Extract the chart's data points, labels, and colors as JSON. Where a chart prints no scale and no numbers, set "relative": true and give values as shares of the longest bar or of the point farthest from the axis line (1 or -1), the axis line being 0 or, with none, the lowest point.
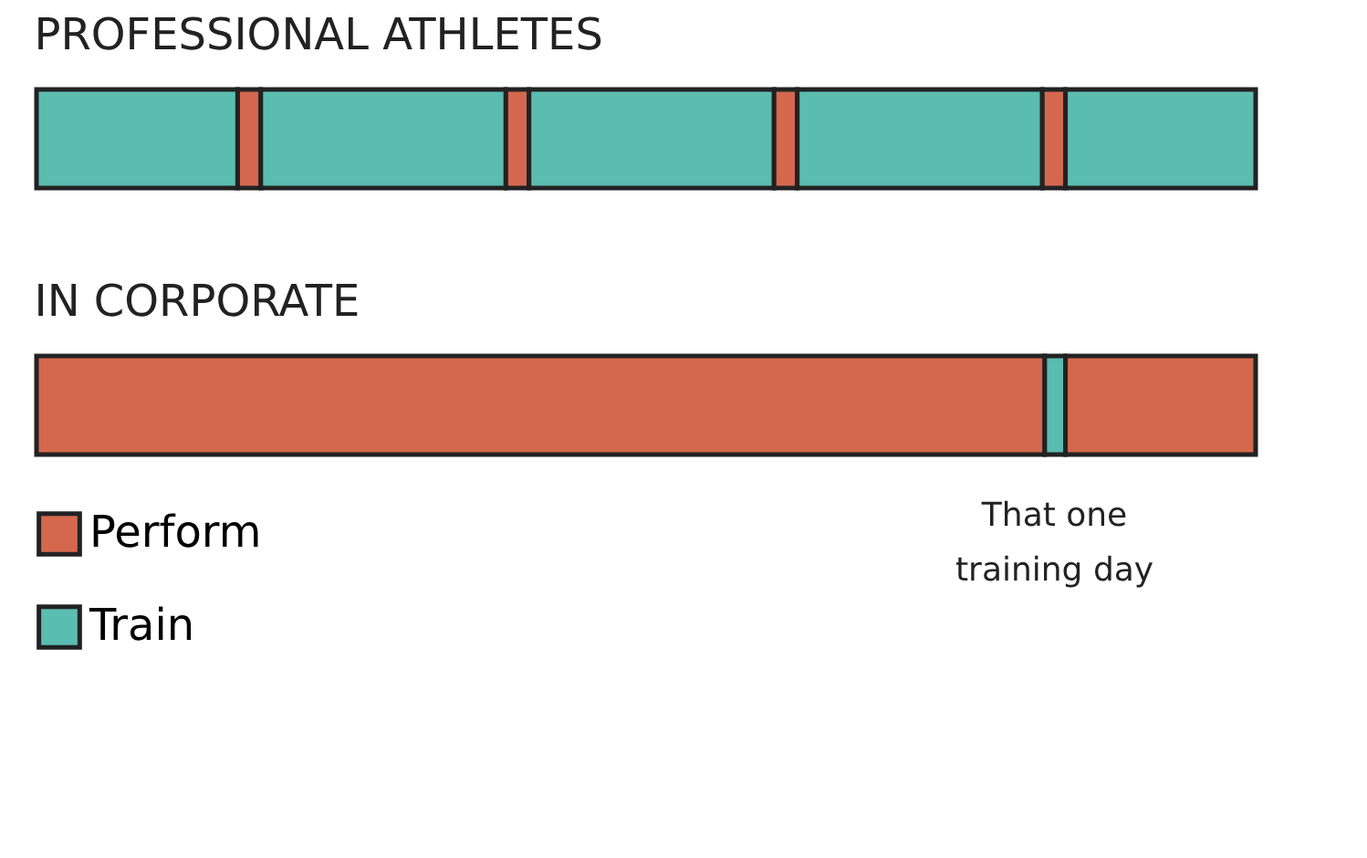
{
  "chart_data": [
    {
      "type": "bar",
      "title": "PROFESSIONAL ATHLETES",
      "orientation": "horizontal",
      "stacked": true,
      "relative": true,
      "legend": false,
      "categories": [
        null
      ],
      "series": [
        {
          "color": "#5bbcb0",
          "values": [
            0.165
          ]
        },
        {
          "color": "#d4684f",
          "values": [
            0.019
          ]
        },
        {
          "color": "#5bbcb0",
          "values": [
            0.201
          ]
        },
        {
          "color": "#d4684f",
          "values": [
            0.019
          ]
        },
        {
          "color": "#5bbcb0",
          "values": [
            0.201
          ]
        },
        {
          "color": "#d4684f",
          "values": [
            0.019
          ]
        },
        {
          "color": "#5bbcb0",
          "values": [
            0.201
          ]
        },
        {
          "color": "#d4684f",
          "values": [
            0.019
          ]
        },
        {
          "color": "#5bbcb0",
          "values": [
            0.156
          ]
        }
      ]
    },
    {
      "type": "bar",
      "title": "IN CORPORATE",
      "orientation": "horizontal",
      "stacked": true,
      "relative": true,
      "legend": "bottom left",
      "categories": [
        null
      ],
      "annotations": [
        "That one\ntraining day"
      ],
      "series": [
        {
          "name": "Perform",
          "color": "#d4684f",
          "values": [
            0.827
          ]
        },
        {
          "name": "Train",
          "color": "#5bbcb0",
          "values": [
            0.017
          ]
        },
        {
          "color": "#d4684f",
          "values": [
            0.156
          ]
        }
      ]
    }
  ]
}
